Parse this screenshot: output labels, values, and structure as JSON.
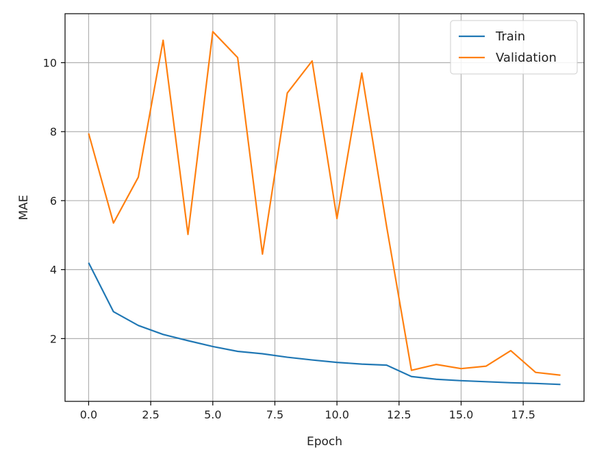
{
  "chart_data": {
    "type": "line",
    "title": "",
    "xlabel": "Epoch",
    "ylabel": "MAE",
    "xlim": [
      -0.95,
      19.95
    ],
    "ylim": [
      0.18,
      11.42
    ],
    "xticks": [
      0.0,
      2.5,
      5.0,
      7.5,
      10.0,
      12.5,
      15.0,
      17.5
    ],
    "xtick_labels": [
      "0.0",
      "2.5",
      "5.0",
      "7.5",
      "10.0",
      "12.5",
      "15.0",
      "17.5"
    ],
    "yticks": [
      2,
      4,
      6,
      8,
      10
    ],
    "ytick_labels": [
      "2",
      "4",
      "6",
      "8",
      "10"
    ],
    "grid": true,
    "legend_position": "top-right",
    "x": [
      0,
      1,
      2,
      3,
      4,
      5,
      6,
      7,
      8,
      9,
      10,
      11,
      12,
      13,
      14,
      15,
      16,
      17,
      18,
      19
    ],
    "series": [
      {
        "name": "Train",
        "color": "#1f77b4",
        "values": [
          4.2,
          2.78,
          2.38,
          2.12,
          1.94,
          1.77,
          1.63,
          1.56,
          1.46,
          1.38,
          1.31,
          1.26,
          1.23,
          0.9,
          0.82,
          0.78,
          0.75,
          0.72,
          0.7,
          0.67
        ]
      },
      {
        "name": "Validation",
        "color": "#ff7f0e",
        "values": [
          7.95,
          5.35,
          6.68,
          10.65,
          5.02,
          10.9,
          10.15,
          4.45,
          9.12,
          10.05,
          5.48,
          9.7,
          5.25,
          1.08,
          1.25,
          1.13,
          1.2,
          1.65,
          1.02,
          0.94
        ]
      }
    ]
  }
}
